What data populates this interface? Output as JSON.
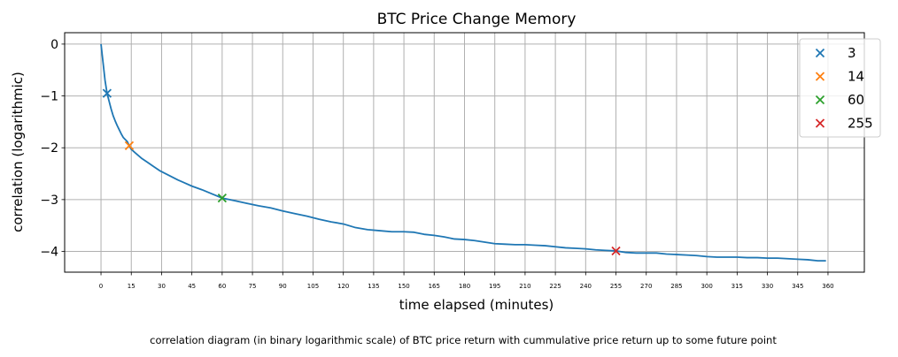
{
  "chart_data": {
    "type": "line",
    "title": "BTC Price Change Memory",
    "xlabel": "time elapsed (minutes)",
    "ylabel": "correlation (logarithmic)",
    "caption": "correlation diagram (in binary logarithmic scale) of BTC price return with cummulative price return up to some future point",
    "xlim": [
      -18,
      378
    ],
    "ylim": [
      -4.4,
      0.22
    ],
    "grid": true,
    "legend_position": "top-right",
    "x_ticks": [
      0,
      15,
      30,
      45,
      60,
      75,
      90,
      105,
      120,
      135,
      150,
      165,
      180,
      195,
      210,
      225,
      240,
      255,
      270,
      285,
      300,
      315,
      330,
      345,
      360
    ],
    "y_ticks": [
      0,
      -1,
      -2,
      -3,
      -4
    ],
    "y_tick_labels": [
      "0",
      "−1",
      "−2",
      "−3",
      "−4"
    ],
    "line_series": {
      "color": "#1f77b4",
      "points": [
        [
          0,
          0
        ],
        [
          1,
          -0.35
        ],
        [
          2,
          -0.7
        ],
        [
          3,
          -0.95
        ],
        [
          4,
          -1.1
        ],
        [
          5,
          -1.25
        ],
        [
          6,
          -1.38
        ],
        [
          7,
          -1.48
        ],
        [
          8,
          -1.57
        ],
        [
          9,
          -1.65
        ],
        [
          10,
          -1.73
        ],
        [
          11,
          -1.8
        ],
        [
          12,
          -1.84
        ],
        [
          13,
          -1.88
        ],
        [
          14,
          -1.96
        ],
        [
          15,
          -2.03
        ],
        [
          17,
          -2.1
        ],
        [
          20,
          -2.2
        ],
        [
          23,
          -2.28
        ],
        [
          26,
          -2.36
        ],
        [
          29,
          -2.44
        ],
        [
          32,
          -2.5
        ],
        [
          35,
          -2.56
        ],
        [
          38,
          -2.62
        ],
        [
          41,
          -2.67
        ],
        [
          45,
          -2.74
        ],
        [
          50,
          -2.81
        ],
        [
          55,
          -2.89
        ],
        [
          60,
          -2.97
        ],
        [
          66,
          -3.02
        ],
        [
          72,
          -3.07
        ],
        [
          78,
          -3.12
        ],
        [
          84,
          -3.16
        ],
        [
          90,
          -3.22
        ],
        [
          96,
          -3.27
        ],
        [
          102,
          -3.32
        ],
        [
          108,
          -3.38
        ],
        [
          114,
          -3.43
        ],
        [
          120,
          -3.47
        ],
        [
          126,
          -3.54
        ],
        [
          132,
          -3.58
        ],
        [
          138,
          -3.6
        ],
        [
          144,
          -3.62
        ],
        [
          150,
          -3.62
        ],
        [
          155,
          -3.63
        ],
        [
          160,
          -3.67
        ],
        [
          165,
          -3.69
        ],
        [
          170,
          -3.72
        ],
        [
          175,
          -3.76
        ],
        [
          180,
          -3.77
        ],
        [
          185,
          -3.79
        ],
        [
          190,
          -3.82
        ],
        [
          195,
          -3.85
        ],
        [
          200,
          -3.86
        ],
        [
          205,
          -3.87
        ],
        [
          210,
          -3.87
        ],
        [
          215,
          -3.88
        ],
        [
          220,
          -3.89
        ],
        [
          225,
          -3.91
        ],
        [
          230,
          -3.93
        ],
        [
          235,
          -3.94
        ],
        [
          240,
          -3.95
        ],
        [
          245,
          -3.97
        ],
        [
          250,
          -3.98
        ],
        [
          255,
          -3.99
        ],
        [
          260,
          -4.02
        ],
        [
          265,
          -4.03
        ],
        [
          270,
          -4.03
        ],
        [
          275,
          -4.03
        ],
        [
          280,
          -4.05
        ],
        [
          285,
          -4.06
        ],
        [
          290,
          -4.07
        ],
        [
          295,
          -4.08
        ],
        [
          300,
          -4.1
        ],
        [
          305,
          -4.11
        ],
        [
          310,
          -4.11
        ],
        [
          315,
          -4.11
        ],
        [
          320,
          -4.12
        ],
        [
          325,
          -4.12
        ],
        [
          330,
          -4.13
        ],
        [
          335,
          -4.13
        ],
        [
          340,
          -4.14
        ],
        [
          345,
          -4.15
        ],
        [
          350,
          -4.16
        ],
        [
          355,
          -4.18
        ],
        [
          359,
          -4.18
        ]
      ]
    },
    "markers": [
      {
        "label": "3",
        "x": 3,
        "y": -0.95,
        "color": "#1f77b4"
      },
      {
        "label": "14",
        "x": 14,
        "y": -1.96,
        "color": "#ff7f0e"
      },
      {
        "label": "60",
        "x": 60,
        "y": -2.97,
        "color": "#2ca02c"
      },
      {
        "label": "255",
        "x": 255,
        "y": -3.99,
        "color": "#d62728"
      }
    ]
  }
}
